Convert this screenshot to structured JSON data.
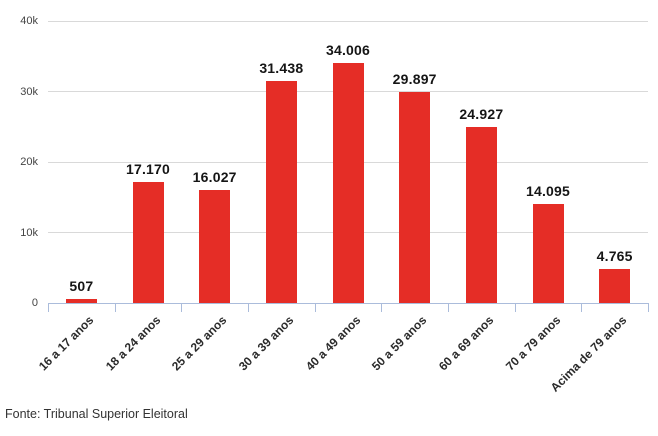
{
  "chart_data": {
    "type": "bar",
    "title": "",
    "categories": [
      "16 a 17 anos",
      "18 a 24 anos",
      "25 a 29 anos",
      "30 a 39 anos",
      "40 a 49 anos",
      "50 a 59 anos",
      "60 a 69 anos",
      "70 a 79 anos",
      "Acima de 79 anos"
    ],
    "values": [
      507,
      17170,
      16027,
      31438,
      34006,
      29897,
      24927,
      14095,
      4765
    ],
    "value_labels": [
      "507",
      "17.170",
      "16.027",
      "31.438",
      "34.006",
      "29.897",
      "24.927",
      "14.095",
      "4.765"
    ],
    "y_ticks": [
      {
        "label": "0",
        "value": 0
      },
      {
        "label": "10k",
        "value": 10000
      },
      {
        "label": "20k",
        "value": 20000
      },
      {
        "label": "30k",
        "value": 30000
      },
      {
        "label": "40k",
        "value": 40000
      }
    ],
    "ylim": [
      0,
      40000
    ],
    "xlabel": "",
    "ylabel": "",
    "grid": true,
    "legend_position": "none",
    "bar_color": "#e52d26",
    "axis_color": "#abbcdb",
    "grid_color": "#d9d9d9"
  },
  "footer": {
    "source": "Fonte: Tribunal Superior Eleitoral"
  }
}
